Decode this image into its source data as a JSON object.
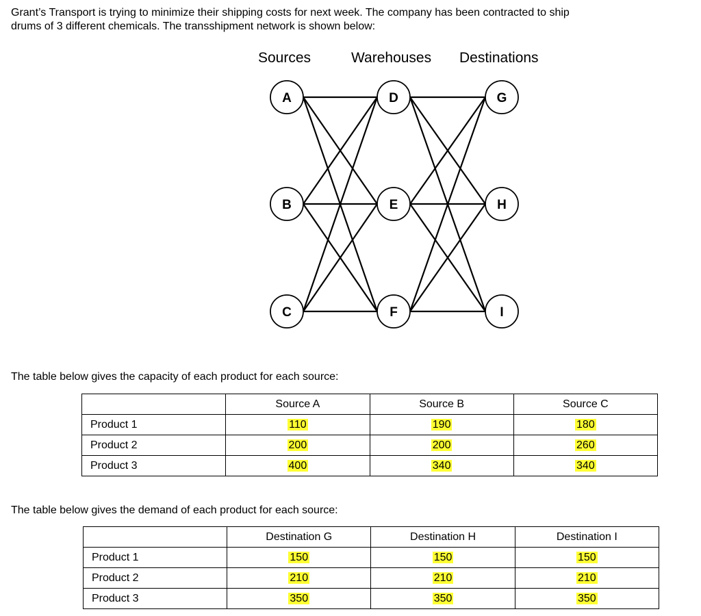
{
  "intro": [
    "Grant’s Transport is trying to minimize their shipping costs for next week.  The company has been contracted to ship",
    "drums of 3 different chemicals.  The transshipment network is shown below:"
  ],
  "network": {
    "column_headers": [
      "Sources",
      "Warehouses",
      "Destinations"
    ],
    "sources": [
      "A",
      "B",
      "C"
    ],
    "warehouses": [
      "D",
      "E",
      "F"
    ],
    "destinations": [
      "G",
      "H",
      "I"
    ],
    "edges": "every source connects to every warehouse; every warehouse connects to every destination"
  },
  "capacity_caption": "The table below gives the capacity of each product for each source:",
  "capacity_table": {
    "columns": [
      "",
      "Source A",
      "Source B",
      "Source C"
    ],
    "rows": [
      {
        "label": "Product 1",
        "values": [
          "110",
          "190",
          "180"
        ]
      },
      {
        "label": "Product 2",
        "values": [
          "200",
          "200",
          "260"
        ]
      },
      {
        "label": "Product 3",
        "values": [
          "400",
          "340",
          "340"
        ]
      }
    ]
  },
  "demand_caption": "The table below gives the demand of each product for each source:",
  "demand_table": {
    "columns": [
      "",
      "Destination G",
      "Destination H",
      "Destination I"
    ],
    "rows": [
      {
        "label": "Product 1",
        "values": [
          "150",
          "150",
          "150"
        ]
      },
      {
        "label": "Product 2",
        "values": [
          "210",
          "210",
          "210"
        ]
      },
      {
        "label": "Product 3",
        "values": [
          "350",
          "350",
          "350"
        ]
      }
    ]
  },
  "highlight_color": "#ffff33"
}
